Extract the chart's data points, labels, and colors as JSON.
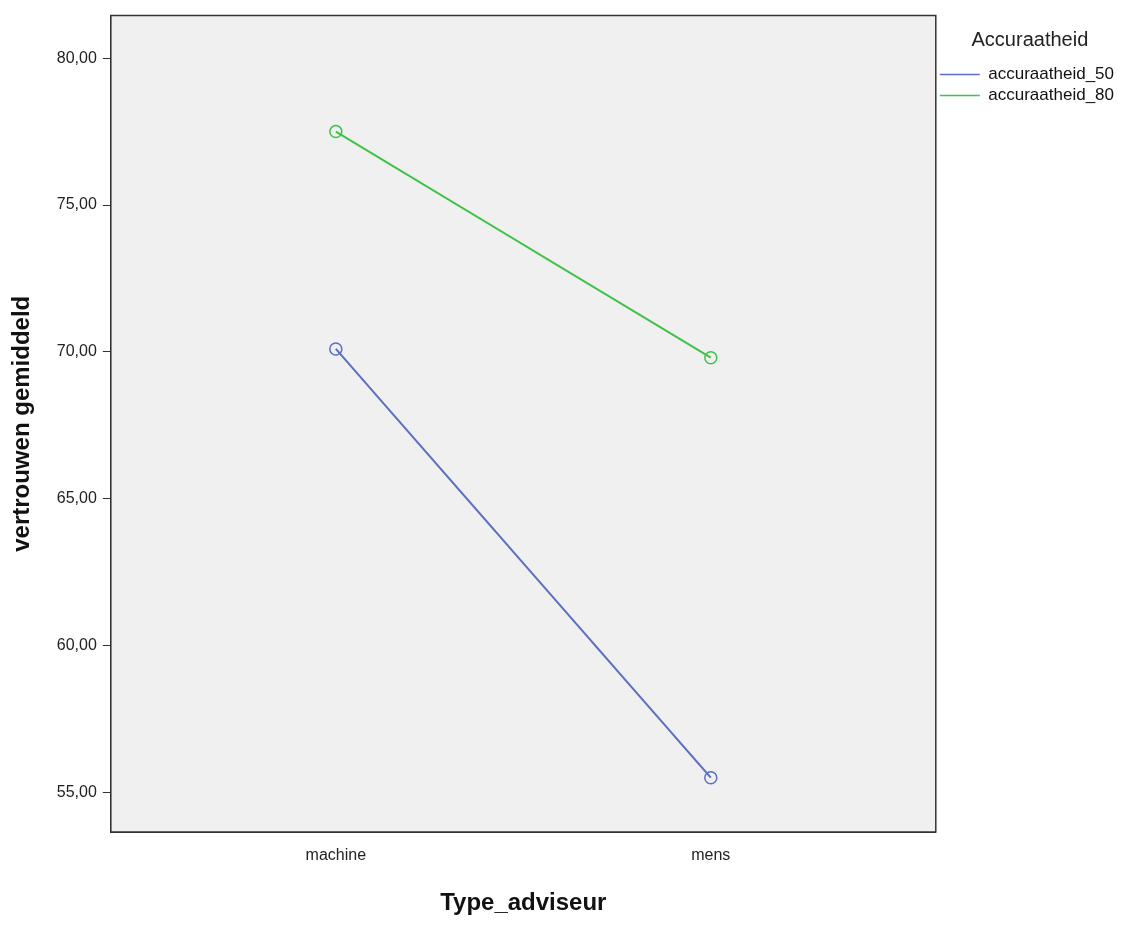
{
  "chart_data": {
    "type": "line",
    "xlabel": "Type_adviseur",
    "ylabel": "vertrouwen gemiddeld",
    "legend_title": "Accuraatheid",
    "categories": [
      "machine",
      "mens"
    ],
    "series": [
      {
        "name": "accuraatheid_50",
        "color": "#5b6fc2",
        "values": [
          70.1,
          55.5
        ]
      },
      {
        "name": "accuraatheid_80",
        "color": "#3fc24a",
        "values": [
          77.5,
          69.8
        ]
      }
    ],
    "ylim": [
      53.65,
      81.45
    ],
    "yticks": [
      {
        "value": 55,
        "label": "55,00"
      },
      {
        "value": 60,
        "label": "60,00"
      },
      {
        "value": 65,
        "label": "65,00"
      },
      {
        "value": 70,
        "label": "70,00"
      },
      {
        "value": 75,
        "label": "75,00"
      },
      {
        "value": 80,
        "label": "80,00"
      }
    ],
    "grid": false,
    "legend": "top right",
    "marker": "circle",
    "line_style": "solid"
  }
}
